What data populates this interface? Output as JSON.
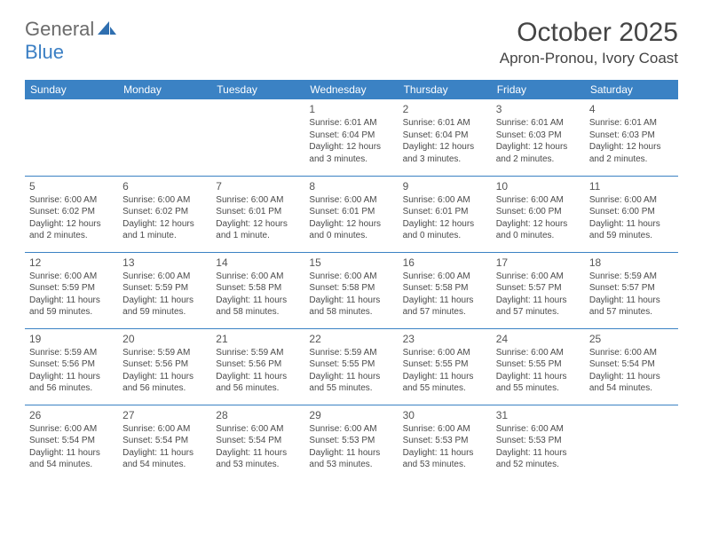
{
  "logo": {
    "part1": "General",
    "part2": "Blue"
  },
  "title": "October 2025",
  "location": "Apron-Pronou, Ivory Coast",
  "colors": {
    "header_bg": "#3b82c4",
    "header_text": "#ffffff",
    "border": "#3b82c4",
    "text": "#4a4a4a",
    "logo_gray": "#6b6b6b",
    "logo_blue": "#3b7fc4"
  },
  "day_headers": [
    "Sunday",
    "Monday",
    "Tuesday",
    "Wednesday",
    "Thursday",
    "Friday",
    "Saturday"
  ],
  "weeks": [
    [
      null,
      null,
      null,
      {
        "n": "1",
        "sr": "Sunrise: 6:01 AM",
        "ss": "Sunset: 6:04 PM",
        "dl": "Daylight: 12 hours and 3 minutes."
      },
      {
        "n": "2",
        "sr": "Sunrise: 6:01 AM",
        "ss": "Sunset: 6:04 PM",
        "dl": "Daylight: 12 hours and 3 minutes."
      },
      {
        "n": "3",
        "sr": "Sunrise: 6:01 AM",
        "ss": "Sunset: 6:03 PM",
        "dl": "Daylight: 12 hours and 2 minutes."
      },
      {
        "n": "4",
        "sr": "Sunrise: 6:01 AM",
        "ss": "Sunset: 6:03 PM",
        "dl": "Daylight: 12 hours and 2 minutes."
      }
    ],
    [
      {
        "n": "5",
        "sr": "Sunrise: 6:00 AM",
        "ss": "Sunset: 6:02 PM",
        "dl": "Daylight: 12 hours and 2 minutes."
      },
      {
        "n": "6",
        "sr": "Sunrise: 6:00 AM",
        "ss": "Sunset: 6:02 PM",
        "dl": "Daylight: 12 hours and 1 minute."
      },
      {
        "n": "7",
        "sr": "Sunrise: 6:00 AM",
        "ss": "Sunset: 6:01 PM",
        "dl": "Daylight: 12 hours and 1 minute."
      },
      {
        "n": "8",
        "sr": "Sunrise: 6:00 AM",
        "ss": "Sunset: 6:01 PM",
        "dl": "Daylight: 12 hours and 0 minutes."
      },
      {
        "n": "9",
        "sr": "Sunrise: 6:00 AM",
        "ss": "Sunset: 6:01 PM",
        "dl": "Daylight: 12 hours and 0 minutes."
      },
      {
        "n": "10",
        "sr": "Sunrise: 6:00 AM",
        "ss": "Sunset: 6:00 PM",
        "dl": "Daylight: 12 hours and 0 minutes."
      },
      {
        "n": "11",
        "sr": "Sunrise: 6:00 AM",
        "ss": "Sunset: 6:00 PM",
        "dl": "Daylight: 11 hours and 59 minutes."
      }
    ],
    [
      {
        "n": "12",
        "sr": "Sunrise: 6:00 AM",
        "ss": "Sunset: 5:59 PM",
        "dl": "Daylight: 11 hours and 59 minutes."
      },
      {
        "n": "13",
        "sr": "Sunrise: 6:00 AM",
        "ss": "Sunset: 5:59 PM",
        "dl": "Daylight: 11 hours and 59 minutes."
      },
      {
        "n": "14",
        "sr": "Sunrise: 6:00 AM",
        "ss": "Sunset: 5:58 PM",
        "dl": "Daylight: 11 hours and 58 minutes."
      },
      {
        "n": "15",
        "sr": "Sunrise: 6:00 AM",
        "ss": "Sunset: 5:58 PM",
        "dl": "Daylight: 11 hours and 58 minutes."
      },
      {
        "n": "16",
        "sr": "Sunrise: 6:00 AM",
        "ss": "Sunset: 5:58 PM",
        "dl": "Daylight: 11 hours and 57 minutes."
      },
      {
        "n": "17",
        "sr": "Sunrise: 6:00 AM",
        "ss": "Sunset: 5:57 PM",
        "dl": "Daylight: 11 hours and 57 minutes."
      },
      {
        "n": "18",
        "sr": "Sunrise: 5:59 AM",
        "ss": "Sunset: 5:57 PM",
        "dl": "Daylight: 11 hours and 57 minutes."
      }
    ],
    [
      {
        "n": "19",
        "sr": "Sunrise: 5:59 AM",
        "ss": "Sunset: 5:56 PM",
        "dl": "Daylight: 11 hours and 56 minutes."
      },
      {
        "n": "20",
        "sr": "Sunrise: 5:59 AM",
        "ss": "Sunset: 5:56 PM",
        "dl": "Daylight: 11 hours and 56 minutes."
      },
      {
        "n": "21",
        "sr": "Sunrise: 5:59 AM",
        "ss": "Sunset: 5:56 PM",
        "dl": "Daylight: 11 hours and 56 minutes."
      },
      {
        "n": "22",
        "sr": "Sunrise: 5:59 AM",
        "ss": "Sunset: 5:55 PM",
        "dl": "Daylight: 11 hours and 55 minutes."
      },
      {
        "n": "23",
        "sr": "Sunrise: 6:00 AM",
        "ss": "Sunset: 5:55 PM",
        "dl": "Daylight: 11 hours and 55 minutes."
      },
      {
        "n": "24",
        "sr": "Sunrise: 6:00 AM",
        "ss": "Sunset: 5:55 PM",
        "dl": "Daylight: 11 hours and 55 minutes."
      },
      {
        "n": "25",
        "sr": "Sunrise: 6:00 AM",
        "ss": "Sunset: 5:54 PM",
        "dl": "Daylight: 11 hours and 54 minutes."
      }
    ],
    [
      {
        "n": "26",
        "sr": "Sunrise: 6:00 AM",
        "ss": "Sunset: 5:54 PM",
        "dl": "Daylight: 11 hours and 54 minutes."
      },
      {
        "n": "27",
        "sr": "Sunrise: 6:00 AM",
        "ss": "Sunset: 5:54 PM",
        "dl": "Daylight: 11 hours and 54 minutes."
      },
      {
        "n": "28",
        "sr": "Sunrise: 6:00 AM",
        "ss": "Sunset: 5:54 PM",
        "dl": "Daylight: 11 hours and 53 minutes."
      },
      {
        "n": "29",
        "sr": "Sunrise: 6:00 AM",
        "ss": "Sunset: 5:53 PM",
        "dl": "Daylight: 11 hours and 53 minutes."
      },
      {
        "n": "30",
        "sr": "Sunrise: 6:00 AM",
        "ss": "Sunset: 5:53 PM",
        "dl": "Daylight: 11 hours and 53 minutes."
      },
      {
        "n": "31",
        "sr": "Sunrise: 6:00 AM",
        "ss": "Sunset: 5:53 PM",
        "dl": "Daylight: 11 hours and 52 minutes."
      },
      null
    ]
  ]
}
